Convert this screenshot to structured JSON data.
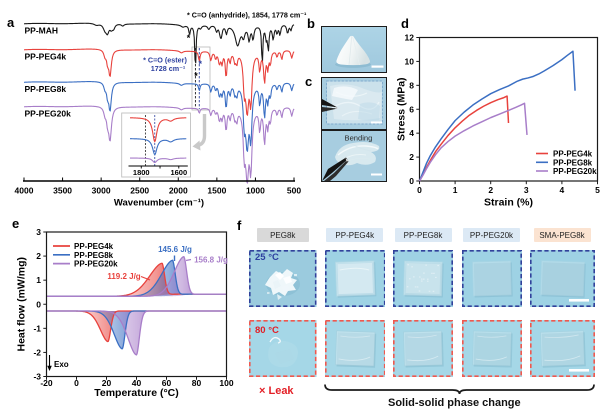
{
  "panel_labels": {
    "a": "a",
    "b": "b",
    "c": "c",
    "d": "d",
    "e": "e",
    "f": "f"
  },
  "colors": {
    "red": "#e8423d",
    "blue": "#3b6fc3",
    "purple": "#a87ec9",
    "black": "#1a1a1a",
    "annot_blue": "#2c3f9f",
    "annot_red": "#e31f26",
    "f_border_blue": "#31419b",
    "f_border_red": "#f0584e",
    "pill_gray": "#d9d9d9",
    "pill_blue": "#dce9f5",
    "pill_peach": "#fbe3d1",
    "photo_bg": "#a6cfe1",
    "photo_bg_f": "#a0d2e3"
  },
  "chart_data": [
    {
      "id": "ftir",
      "type": "line",
      "xlabel": "Wavenumber (cm⁻¹)",
      "x_range": [
        4000,
        500
      ],
      "x_ticks": [
        "4000",
        "3500",
        "3000",
        "2500",
        "2000",
        "1500",
        "1000",
        "500"
      ],
      "annotation_anhydride": "* C=O (anhydride), 1854, 1778 cm⁻¹",
      "annotation_ester_line1": "* C=O (ester)",
      "annotation_ester_line2": "1728 cm⁻¹",
      "asterisk": "*",
      "dashed_lines_wn": [
        1778,
        1728
      ],
      "series": [
        {
          "name": "PP-MAH",
          "color_key": "black",
          "baseline": 24,
          "peaks": [
            [
              3060,
              2,
              40
            ],
            [
              2950,
              6,
              28
            ],
            [
              2918,
              8,
              22
            ],
            [
              2868,
              5,
              22
            ],
            [
              2838,
              4,
              18
            ],
            [
              2720,
              2,
              20
            ],
            [
              1940,
              2,
              30
            ],
            [
              1854,
              9,
              11
            ],
            [
              1778,
              46,
              9
            ],
            [
              1712,
              3,
              15
            ],
            [
              1604,
              4,
              18
            ],
            [
              1504,
              6,
              14
            ],
            [
              1455,
              9,
              16
            ],
            [
              1440,
              7,
              12
            ],
            [
              1376,
              8,
              13
            ],
            [
              1231,
              20,
              38
            ],
            [
              1155,
              10,
              20
            ],
            [
              1082,
              14,
              16
            ],
            [
              1031,
              13,
              14
            ],
            [
              912,
              40,
              9
            ],
            [
              860,
              12,
              12
            ],
            [
              833,
              24,
              11
            ],
            [
              770,
              14,
              14
            ],
            [
              720,
              8,
              12
            ],
            [
              682,
              10,
              12
            ],
            [
              583,
              9,
              14
            ],
            [
              540,
              6,
              12
            ]
          ]
        },
        {
          "name": "PP-PEG4k",
          "color_key": "red",
          "baseline": 50,
          "peaks": [
            [
              2950,
              6,
              18
            ],
            [
              2917,
              10,
              14
            ],
            [
              2885,
              26,
              20
            ],
            [
              1960,
              2,
              25
            ],
            [
              1728,
              10,
              12
            ],
            [
              1578,
              9,
              14
            ],
            [
              1516,
              7,
              12
            ],
            [
              1467,
              12,
              16
            ],
            [
              1433,
              11,
              12
            ],
            [
              1380,
              26,
              12
            ],
            [
              1329,
              10,
              12
            ],
            [
              1268,
              9,
              14
            ],
            [
              1242,
              10,
              12
            ],
            [
              1145,
              30,
              15
            ],
            [
              1107,
              55,
              25
            ],
            [
              1060,
              45,
              18
            ],
            [
              944,
              18,
              12
            ],
            [
              882,
              30,
              14
            ],
            [
              840,
              16,
              12
            ],
            [
              807,
              12,
              12
            ],
            [
              720,
              6,
              12
            ],
            [
              658,
              9,
              12
            ],
            [
              529,
              8,
              14
            ]
          ]
        },
        {
          "name": "PP-PEG8k",
          "color_key": "blue",
          "baseline": 82.5,
          "peaks": [
            [
              2950,
              6,
              18
            ],
            [
              2917,
              11,
              14
            ],
            [
              2885,
              28,
              20
            ],
            [
              1960,
              2,
              25
            ],
            [
              1728,
              7,
              11
            ],
            [
              1578,
              8,
              13
            ],
            [
              1516,
              6,
              11
            ],
            [
              1467,
              12,
              15
            ],
            [
              1433,
              10,
              12
            ],
            [
              1380,
              24,
              13
            ],
            [
              1329,
              10,
              12
            ],
            [
              1268,
              9,
              13
            ],
            [
              1242,
              10,
              12
            ],
            [
              1145,
              32,
              15
            ],
            [
              1107,
              58,
              25
            ],
            [
              1060,
              48,
              18
            ],
            [
              944,
              19,
              12
            ],
            [
              882,
              32,
              14
            ],
            [
              840,
              17,
              12
            ],
            [
              807,
              12,
              12
            ],
            [
              720,
              6,
              12
            ],
            [
              658,
              9,
              12
            ],
            [
              529,
              8,
              14
            ]
          ]
        },
        {
          "name": "PP-PEG20k",
          "color_key": "purple",
          "baseline": 107,
          "peaks": [
            [
              2950,
              7,
              18
            ],
            [
              2917,
              12,
              15
            ],
            [
              2885,
              33,
              22
            ],
            [
              1960,
              2,
              25
            ],
            [
              1728,
              5,
              11
            ],
            [
              1578,
              7,
              13
            ],
            [
              1516,
              5,
              11
            ],
            [
              1467,
              12,
              15
            ],
            [
              1433,
              10,
              12
            ],
            [
              1380,
              22,
              13
            ],
            [
              1329,
              10,
              12
            ],
            [
              1268,
              9,
              13
            ],
            [
              1242,
              11,
              12
            ],
            [
              1145,
              36,
              15
            ],
            [
              1107,
              64,
              25
            ],
            [
              1060,
              54,
              18
            ],
            [
              944,
              21,
              12
            ],
            [
              882,
              34,
              14
            ],
            [
              840,
              18,
              12
            ],
            [
              807,
              13,
              12
            ],
            [
              720,
              7,
              12
            ],
            [
              658,
              10,
              12
            ],
            [
              529,
              9,
              14
            ]
          ]
        }
      ],
      "inset": {
        "x_range": [
          1860,
          1560
        ],
        "x_ticks": [
          "1800",
          "1600"
        ],
        "x_tick_values": [
          1800,
          1600
        ],
        "dashed_lines_wn": [
          1778,
          1728
        ],
        "series": [
          {
            "color_key": "red",
            "baseline": 117.5,
            "peaks": [
              [
                1728,
                24,
                14
              ],
              [
                1643,
                3,
                18
              ]
            ]
          },
          {
            "color_key": "blue",
            "baseline": 138.5,
            "peaks": [
              [
                1728,
                16,
                14
              ],
              [
                1643,
                3,
                18
              ]
            ]
          },
          {
            "color_key": "purple",
            "baseline": 158,
            "peaks": [
              [
                1728,
                4.5,
                14
              ],
              [
                1643,
                1.5,
                18
              ]
            ]
          }
        ]
      }
    },
    {
      "id": "stress_strain",
      "type": "line",
      "xlabel": "Strain (%)",
      "ylabel": "Stress (MPa)",
      "xlim": [
        0,
        5
      ],
      "ylim": [
        0,
        12
      ],
      "x_ticks": [
        "0",
        "1",
        "2",
        "3",
        "4",
        "5"
      ],
      "y_ticks": [
        "0",
        "2",
        "4",
        "6",
        "8",
        "10",
        "12"
      ],
      "legend": [
        "PP-PEG4k",
        "PP-PEG8k",
        "PP-PEG20k"
      ],
      "series": [
        {
          "name": "PP-PEG4k",
          "color_key": "red",
          "points": [
            [
              0,
              0
            ],
            [
              0.1,
              0.55
            ],
            [
              0.2,
              1.15
            ],
            [
              0.3,
              1.7
            ],
            [
              0.45,
              2.45
            ],
            [
              0.6,
              3.05
            ],
            [
              0.8,
              3.8
            ],
            [
              1.0,
              4.45
            ],
            [
              1.2,
              5.0
            ],
            [
              1.4,
              5.5
            ],
            [
              1.6,
              5.9
            ],
            [
              1.8,
              6.25
            ],
            [
              2.0,
              6.55
            ],
            [
              2.2,
              6.8
            ],
            [
              2.35,
              6.95
            ],
            [
              2.46,
              7.1
            ]
          ],
          "break_drop": [
            2.5,
            4.85
          ]
        },
        {
          "name": "PP-PEG8k",
          "color_key": "blue",
          "points": [
            [
              0,
              0
            ],
            [
              0.1,
              0.75
            ],
            [
              0.2,
              1.5
            ],
            [
              0.3,
              2.1
            ],
            [
              0.45,
              2.85
            ],
            [
              0.6,
              3.5
            ],
            [
              0.8,
              4.3
            ],
            [
              1.0,
              5.05
            ],
            [
              1.25,
              5.75
            ],
            [
              1.5,
              6.35
            ],
            [
              1.75,
              6.85
            ],
            [
              2.0,
              7.3
            ],
            [
              2.25,
              7.65
            ],
            [
              2.5,
              7.95
            ],
            [
              2.75,
              8.35
            ],
            [
              2.9,
              8.52
            ],
            [
              3.05,
              8.62
            ],
            [
              3.2,
              8.75
            ],
            [
              3.35,
              8.95
            ],
            [
              3.5,
              9.2
            ],
            [
              3.75,
              9.65
            ],
            [
              4.0,
              10.15
            ],
            [
              4.15,
              10.5
            ],
            [
              4.31,
              10.85
            ]
          ],
          "break_drop": [
            4.37,
            7.55
          ]
        },
        {
          "name": "PP-PEG20k",
          "color_key": "purple",
          "points": [
            [
              0,
              0
            ],
            [
              0.1,
              0.5
            ],
            [
              0.2,
              1.05
            ],
            [
              0.3,
              1.55
            ],
            [
              0.45,
              2.2
            ],
            [
              0.6,
              2.75
            ],
            [
              0.8,
              3.3
            ],
            [
              1.0,
              3.75
            ],
            [
              1.25,
              4.2
            ],
            [
              1.5,
              4.6
            ],
            [
              1.75,
              4.95
            ],
            [
              2.0,
              5.3
            ],
            [
              2.25,
              5.6
            ],
            [
              2.5,
              5.9
            ],
            [
              2.7,
              6.15
            ],
            [
              2.85,
              6.35
            ],
            [
              2.95,
              6.5
            ]
          ],
          "break_drop": [
            3.02,
            3.85
          ]
        }
      ]
    },
    {
      "id": "dsc",
      "type": "line",
      "xlabel": "Temperature (°C)",
      "ylabel": "Heat flow (mW/mg)",
      "xlim": [
        -20,
        100
      ],
      "ylim": [
        -3,
        3
      ],
      "x_ticks": [
        "-20",
        "0",
        "20",
        "40",
        "60",
        "80",
        "100"
      ],
      "y_ticks": [
        "3",
        "2",
        "1",
        "0",
        "-1",
        "-2",
        "-3"
      ],
      "legend": [
        "PP-PEG4k",
        "PP-PEG8k",
        "PP-PEG20k"
      ],
      "exo_label": "Exo",
      "baselines": {
        "heat_left": 0.33,
        "heat_right": 0.42,
        "cool": -0.28
      },
      "series": [
        {
          "name": "PP-PEG4k",
          "color_key": "red",
          "melt_peak_T": 57,
          "melt_apex": 1.75,
          "melt_sL": 12.5,
          "melt_sR": 2.5,
          "enthalpy_label": "119.2 J/g",
          "cryst_peak_T": 21,
          "cryst_min": -1.55,
          "cryst_sL": 7.5,
          "cryst_sR": 2.6
        },
        {
          "name": "PP-PEG8k",
          "color_key": "blue",
          "melt_peak_T": 64,
          "melt_apex": 1.87,
          "melt_sL": 11,
          "melt_sR": 2.6,
          "enthalpy_label": "145.6 J/g",
          "cryst_peak_T": 30.5,
          "cryst_min": -1.85,
          "cryst_sL": 8,
          "cryst_sR": 2.7
        },
        {
          "name": "PP-PEG20k",
          "color_key": "purple",
          "melt_peak_T": 71.5,
          "melt_apex": 2.02,
          "melt_sL": 9.5,
          "melt_sR": 2.8,
          "enthalpy_label": "156.8 J/g",
          "cryst_peak_T": 40,
          "cryst_min": -2.1,
          "cryst_sL": 8.5,
          "cryst_sR": 2.8
        }
      ]
    }
  ],
  "photos": {
    "c_bottom_label": "Bending"
  },
  "panel_f": {
    "headers": [
      {
        "label": "PEG8k",
        "bg_key": "pill_gray"
      },
      {
        "label": "PP-PEG4k",
        "bg_key": "pill_blue"
      },
      {
        "label": "PP-PEG8k",
        "bg_key": "pill_blue"
      },
      {
        "label": "PP-PEG20k",
        "bg_key": "pill_blue"
      },
      {
        "label": "SMA-PEG8k",
        "bg_key": "pill_peach"
      }
    ],
    "row_labels": [
      {
        "text": "25 °C",
        "color_key": "annot_blue"
      },
      {
        "text": "80 °C",
        "color_key": "annot_red"
      }
    ],
    "leak_label": "× Leak",
    "brace_label": "Solid-solid phase change"
  }
}
